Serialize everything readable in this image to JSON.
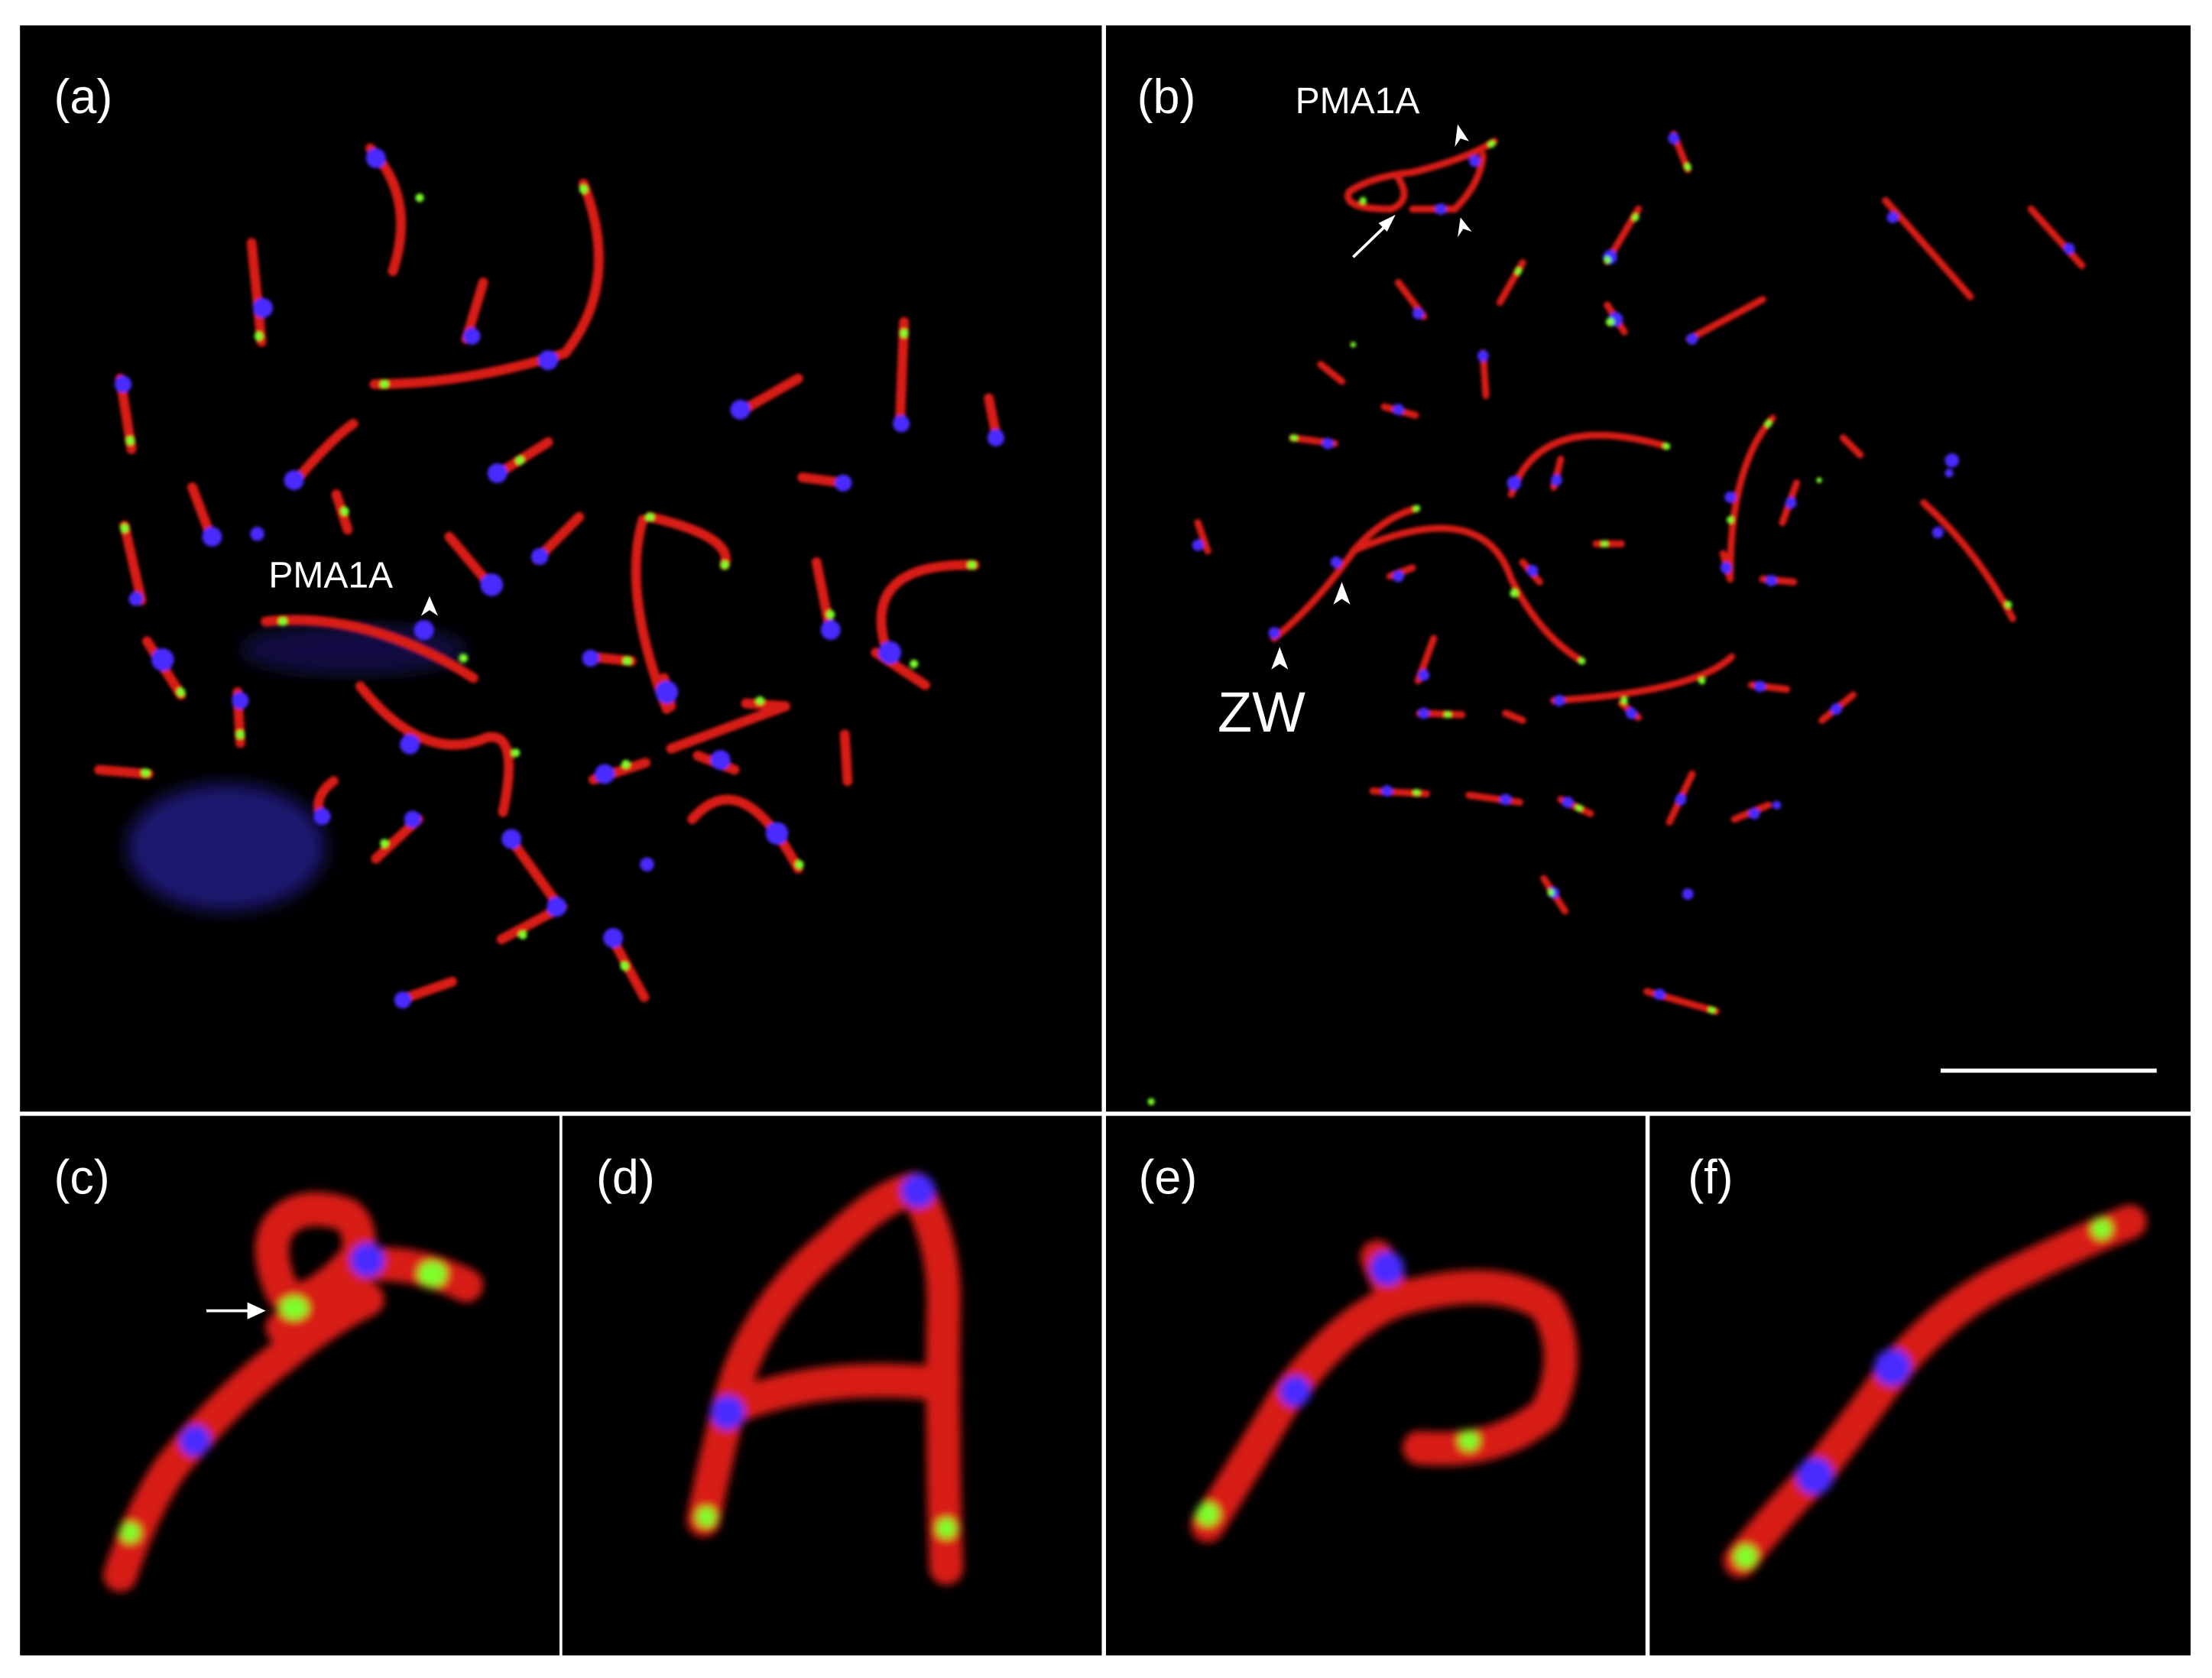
{
  "panels": [
    {
      "label": "(a)",
      "annotations": [
        "PMA1A"
      ]
    },
    {
      "label": "(b)",
      "annotations": [
        "PMA1A",
        "ZW"
      ]
    },
    {
      "label": "(c)"
    },
    {
      "label": "(d)"
    },
    {
      "label": "(e)"
    },
    {
      "label": "(f)"
    }
  ]
}
